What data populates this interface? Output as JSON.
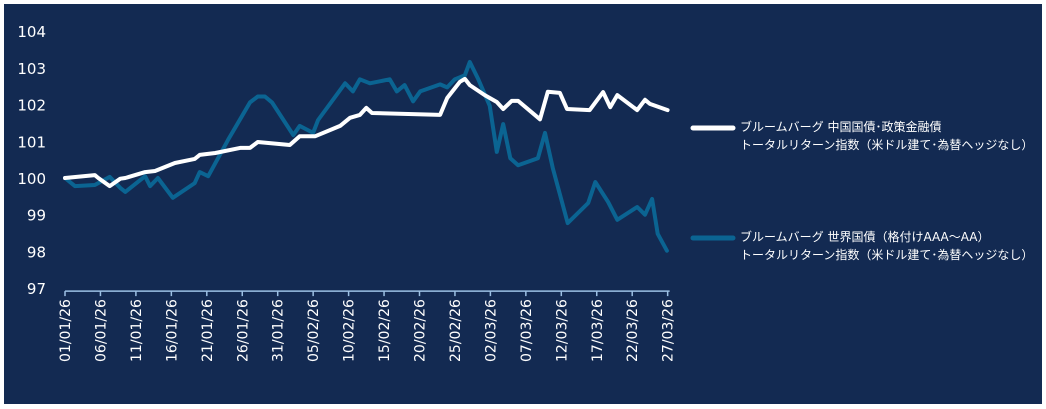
{
  "chart_data": {
    "type": "line",
    "title": "",
    "xlabel": "",
    "ylabel": "",
    "ylim": [
      97,
      104
    ],
    "yticks": [
      "97",
      "98",
      "99",
      "100",
      "101",
      "102",
      "103",
      "104"
    ],
    "x_unit": "days since 01/01/26",
    "xlim": [
      0,
      85
    ],
    "xtick_labels": [
      "01/01/26",
      "06/01/26",
      "11/01/26",
      "16/01/26",
      "21/01/26",
      "26/01/26",
      "31/01/26",
      "05/02/26",
      "10/02/26",
      "15/02/26",
      "20/02/26",
      "25/02/26",
      "02/03/26",
      "07/03/26",
      "12/03/26",
      "17/03/26",
      "22/03/26",
      "27/03/26"
    ],
    "grid": false,
    "legend_position": "right",
    "series": [
      {
        "name_line1": "ブルームバーグ 中国国債･政策金融債",
        "name_line2": "トータルリターン指数（米ドル建て･為替ヘッジなし）",
        "color": "#ffffff",
        "points": [
          [
            0,
            100
          ],
          [
            4.2,
            100.08
          ],
          [
            4.7,
            100.0
          ],
          [
            6.3,
            99.78
          ],
          [
            7.8,
            99.98
          ],
          [
            8.5,
            100.0
          ],
          [
            11.3,
            100.16
          ],
          [
            12.7,
            100.19
          ],
          [
            15.5,
            100.41
          ],
          [
            18.3,
            100.52
          ],
          [
            19,
            100.63
          ],
          [
            21.2,
            100.68
          ],
          [
            24.7,
            100.82
          ],
          [
            26.1,
            100.82
          ],
          [
            27.2,
            100.98
          ],
          [
            31.7,
            100.9
          ],
          [
            33.1,
            101.14
          ],
          [
            35.3,
            101.14
          ],
          [
            38.8,
            101.42
          ],
          [
            40.2,
            101.64
          ],
          [
            41.6,
            101.72
          ],
          [
            42.5,
            101.91
          ],
          [
            43.3,
            101.77
          ],
          [
            52.9,
            101.72
          ],
          [
            53.9,
            102.18
          ],
          [
            55.7,
            102.62
          ],
          [
            56.4,
            102.7
          ],
          [
            57.1,
            102.53
          ],
          [
            59.2,
            102.26
          ],
          [
            60.9,
            102.07
          ],
          [
            61.8,
            101.88
          ],
          [
            63,
            102.1
          ],
          [
            63.9,
            102.1
          ],
          [
            67,
            101.6
          ],
          [
            68.1,
            102.35
          ],
          [
            69.8,
            102.32
          ],
          [
            70.8,
            101.88
          ],
          [
            74,
            101.85
          ],
          [
            75.9,
            102.34
          ],
          [
            76.9,
            101.93
          ],
          [
            77.9,
            102.26
          ],
          [
            80.7,
            101.85
          ],
          [
            81.8,
            102.13
          ],
          [
            82.5,
            102.02
          ],
          [
            85,
            101.85
          ]
        ]
      },
      {
        "name_line1": "ブルームバーグ 世界国債（格付けAAA～AA）",
        "name_line2": "トータルリターン指数（米ドル建て･為替ヘッジなし）",
        "color": "#0b6492",
        "points": [
          [
            0,
            100
          ],
          [
            1.4,
            99.78
          ],
          [
            4.2,
            99.81
          ],
          [
            6.3,
            100.03
          ],
          [
            7.8,
            99.73
          ],
          [
            8.5,
            99.62
          ],
          [
            11.3,
            100.05
          ],
          [
            12,
            99.78
          ],
          [
            13.1,
            100.0
          ],
          [
            15.2,
            99.46
          ],
          [
            18.3,
            99.86
          ],
          [
            19,
            100.16
          ],
          [
            20.2,
            100.05
          ],
          [
            23,
            101.04
          ],
          [
            26.1,
            102.06
          ],
          [
            27.2,
            102.22
          ],
          [
            28.2,
            102.22
          ],
          [
            29.2,
            102.06
          ],
          [
            32.2,
            101.17
          ],
          [
            33.1,
            101.42
          ],
          [
            35,
            101.23
          ],
          [
            35.7,
            101.58
          ],
          [
            39.5,
            102.58
          ],
          [
            40.6,
            102.36
          ],
          [
            41.6,
            102.69
          ],
          [
            43,
            102.58
          ],
          [
            45.8,
            102.69
          ],
          [
            46.8,
            102.36
          ],
          [
            47.9,
            102.53
          ],
          [
            49.1,
            102.09
          ],
          [
            50.1,
            102.36
          ],
          [
            52.9,
            102.55
          ],
          [
            53.9,
            102.47
          ],
          [
            55,
            102.69
          ],
          [
            56.4,
            102.8
          ],
          [
            57.1,
            103.16
          ],
          [
            58.3,
            102.69
          ],
          [
            59.9,
            101.97
          ],
          [
            60.9,
            100.71
          ],
          [
            61.8,
            101.47
          ],
          [
            62.8,
            100.54
          ],
          [
            63.9,
            100.35
          ],
          [
            66.7,
            100.54
          ],
          [
            67.7,
            101.23
          ],
          [
            68.8,
            100.27
          ],
          [
            70.9,
            98.77
          ],
          [
            73.8,
            99.32
          ],
          [
            74.8,
            99.89
          ],
          [
            76.6,
            99.35
          ],
          [
            77.9,
            98.86
          ],
          [
            80.7,
            99.21
          ],
          [
            81.8,
            99.0
          ],
          [
            82.8,
            99.43
          ],
          [
            83.6,
            98.48
          ],
          [
            84.9,
            98.02
          ]
        ]
      }
    ]
  }
}
